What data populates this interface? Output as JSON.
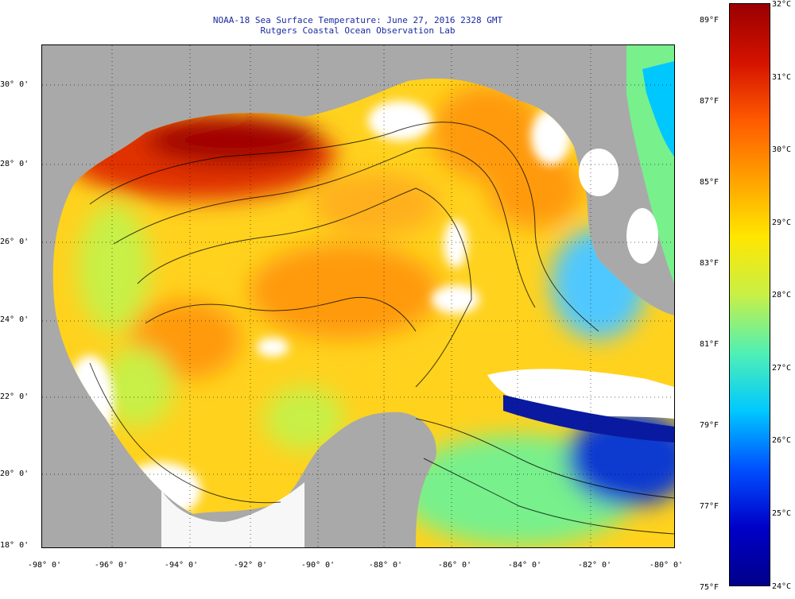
{
  "title": {
    "line1": "NOAA-18 Sea Surface Temperature:  June 27, 2016 2328 GMT",
    "line2": "Rutgers Coastal Ocean Observation Lab"
  },
  "axes": {
    "lat_labels": [
      "30° 0'",
      "28° 0'",
      "26° 0'",
      "24° 0'",
      "22° 0'",
      "20° 0'",
      "18° 0'"
    ],
    "lon_labels": [
      "-98° 0'",
      "-96° 0'",
      "-94° 0'",
      "-92° 0'",
      "-90° 0'",
      "-88° 0'",
      "-86° 0'",
      "-84° 0'",
      "-82° 0'",
      "-80° 0'"
    ]
  },
  "colorbar": {
    "f_labels": [
      "89°F",
      "87°F",
      "85°F",
      "83°F",
      "81°F",
      "79°F",
      "77°F",
      "75°F"
    ],
    "c_labels": [
      "32°C",
      "31°C",
      "30°C",
      "29°C",
      "28°C",
      "27°C",
      "26°C",
      "25°C",
      "24°C"
    ],
    "colors": [
      "#9a0000",
      "#d41200",
      "#ff5a00",
      "#ffa000",
      "#ffe600",
      "#c8f046",
      "#50f0b4",
      "#00c8ff",
      "#0050ff",
      "#0000c8",
      "#00008a"
    ]
  },
  "map": {
    "colors": {
      "land": "#a9a9a9",
      "cloud": "#ffffff",
      "warm_extreme": "#a00000",
      "warm_high": "#e03000",
      "warm": "#ff9a10",
      "mid": "#ffd21e",
      "cool": "#78f08c",
      "cold": "#00a0ff",
      "very_cold": "#0a1aa0"
    }
  }
}
